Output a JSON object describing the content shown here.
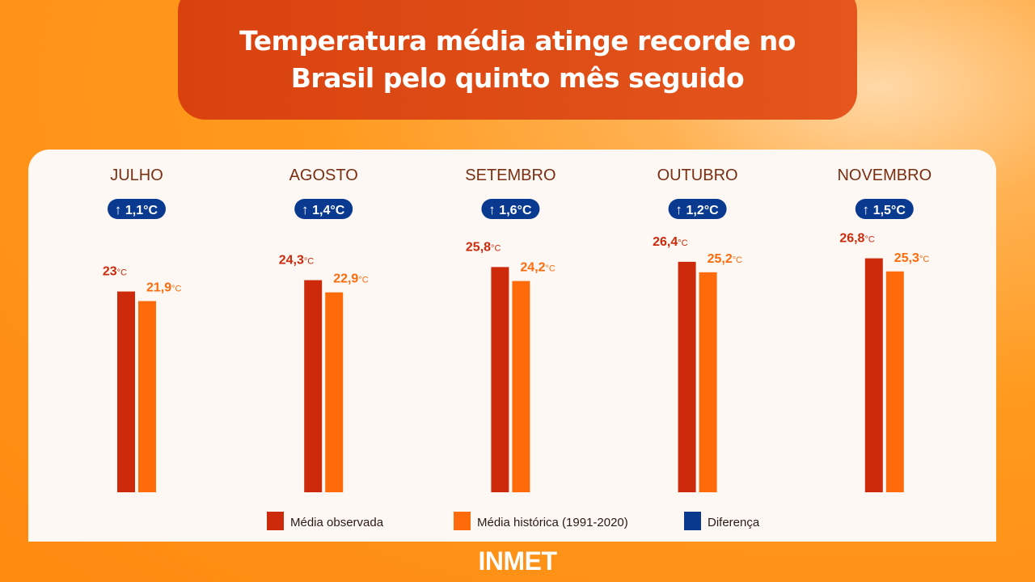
{
  "title": "Temperatura média atinge recorde no Brasil pelo quinto mês seguido",
  "footer": "INMET",
  "chart_data": {
    "type": "bar",
    "categories": [
      "JULHO",
      "AGOSTO",
      "SETEMBRO",
      "OUTUBRO",
      "NOVEMBRO"
    ],
    "unit": "°C",
    "series": [
      {
        "name": "Média observada",
        "color": "#cc2a0a",
        "values": [
          23,
          24.3,
          25.8,
          26.4,
          26.8
        ],
        "labels": [
          "23",
          "24,3",
          "25,8",
          "26,4",
          "26,8"
        ]
      },
      {
        "name": "Média histórica (1991-2020)",
        "color": "#ff6a0a",
        "values": [
          21.9,
          22.9,
          24.2,
          25.2,
          25.3
        ],
        "labels": [
          "21,9",
          "22,9",
          "24,2",
          "25,2",
          "25,3"
        ]
      }
    ],
    "difference": {
      "name": "Diferença",
      "color": "#0a3a8f",
      "icon": "arrow-up-icon",
      "labels": [
        "1,1°C",
        "1,4°C",
        "1,6°C",
        "1,2°C",
        "1,5°C"
      ]
    },
    "ylim": [
      0,
      30
    ],
    "legend": "bottom",
    "grid": false
  }
}
